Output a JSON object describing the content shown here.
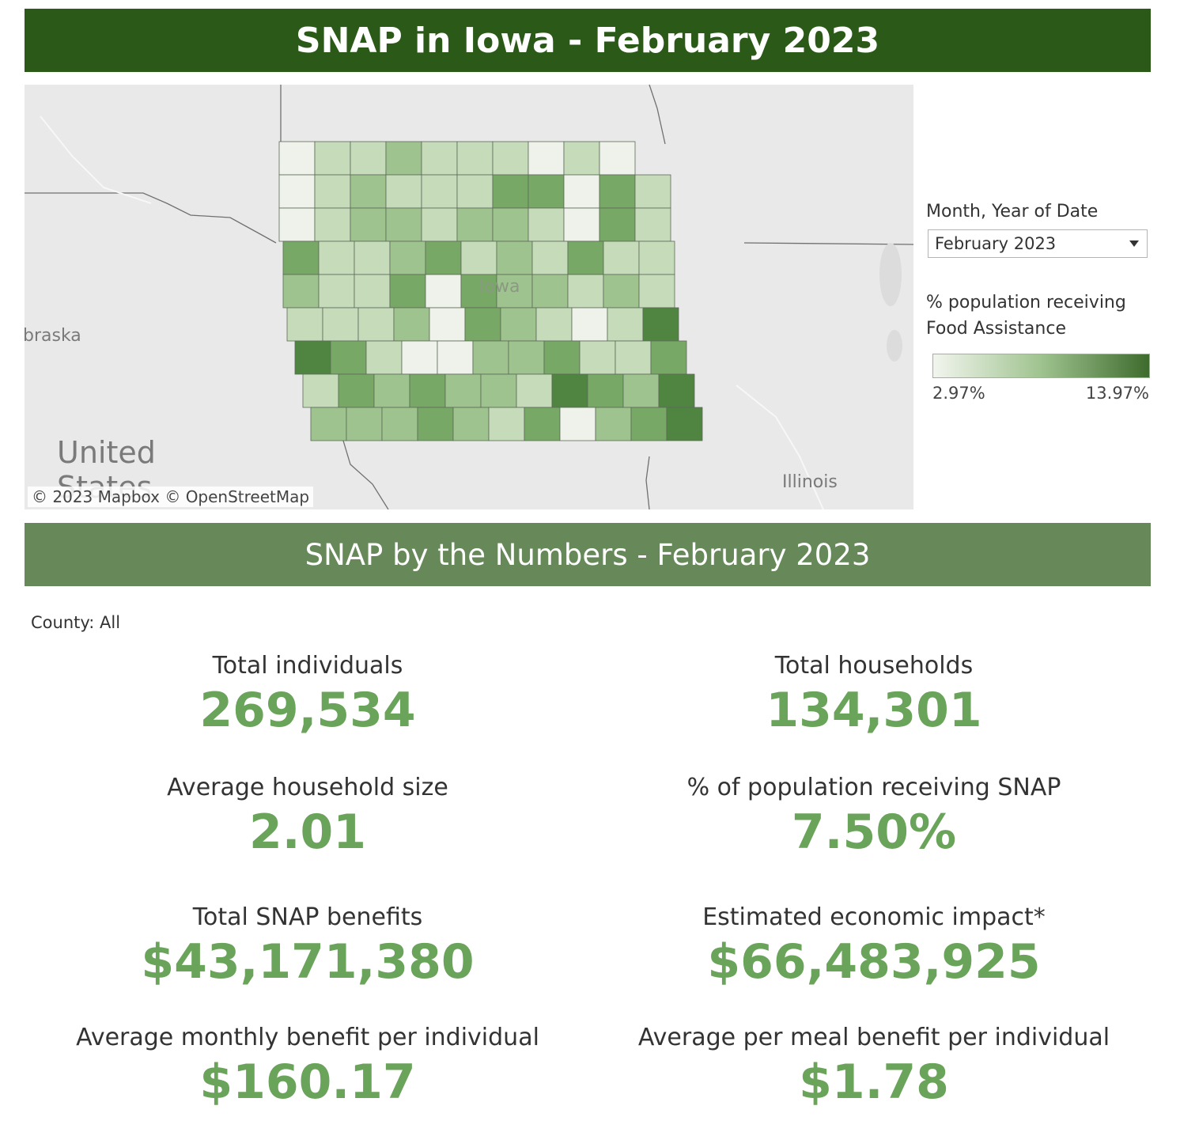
{
  "header": {
    "title": "SNAP in Iowa - February 2023"
  },
  "map": {
    "labels": {
      "state_center": "Iowa",
      "nebraska": "braska",
      "united_states": "United",
      "united_states_cut": "States",
      "illinois": "Illinois"
    },
    "attribution": "© 2023 Mapbox  © OpenStreetMap"
  },
  "filter": {
    "label": "Month, Year of Date",
    "selected": "February 2023"
  },
  "legend": {
    "title": "% population receiving Food Assistance",
    "min_label": "2.97%",
    "max_label": "13.97%",
    "color_low": "#f2f5ee",
    "color_high": "#3e6b2e"
  },
  "section": {
    "title": "SNAP by the Numbers - February 2023"
  },
  "county_filter": "County: All",
  "metrics": {
    "total_individuals": {
      "label": "Total individuals",
      "value": "269,534"
    },
    "total_households": {
      "label": "Total households",
      "value": "134,301"
    },
    "avg_household_size": {
      "label": "Average household size",
      "value": "2.01"
    },
    "pct_population": {
      "label": "% of population receiving SNAP",
      "value": "7.50%"
    },
    "total_benefits": {
      "label": "Total SNAP benefits",
      "value": "$43,171,380"
    },
    "economic_impact": {
      "label": "Estimated economic impact*",
      "value": "$66,483,925"
    },
    "avg_monthly_benefit": {
      "label": "Average monthly benefit per individual",
      "value": "$160.17"
    },
    "avg_meal_benefit": {
      "label": "Average per meal benefit per individual",
      "value": "$1.78"
    }
  },
  "colors": {
    "banner_dark": "#2b5a18",
    "banner_mid": "#67895a",
    "value_green": "#6aa35a"
  }
}
